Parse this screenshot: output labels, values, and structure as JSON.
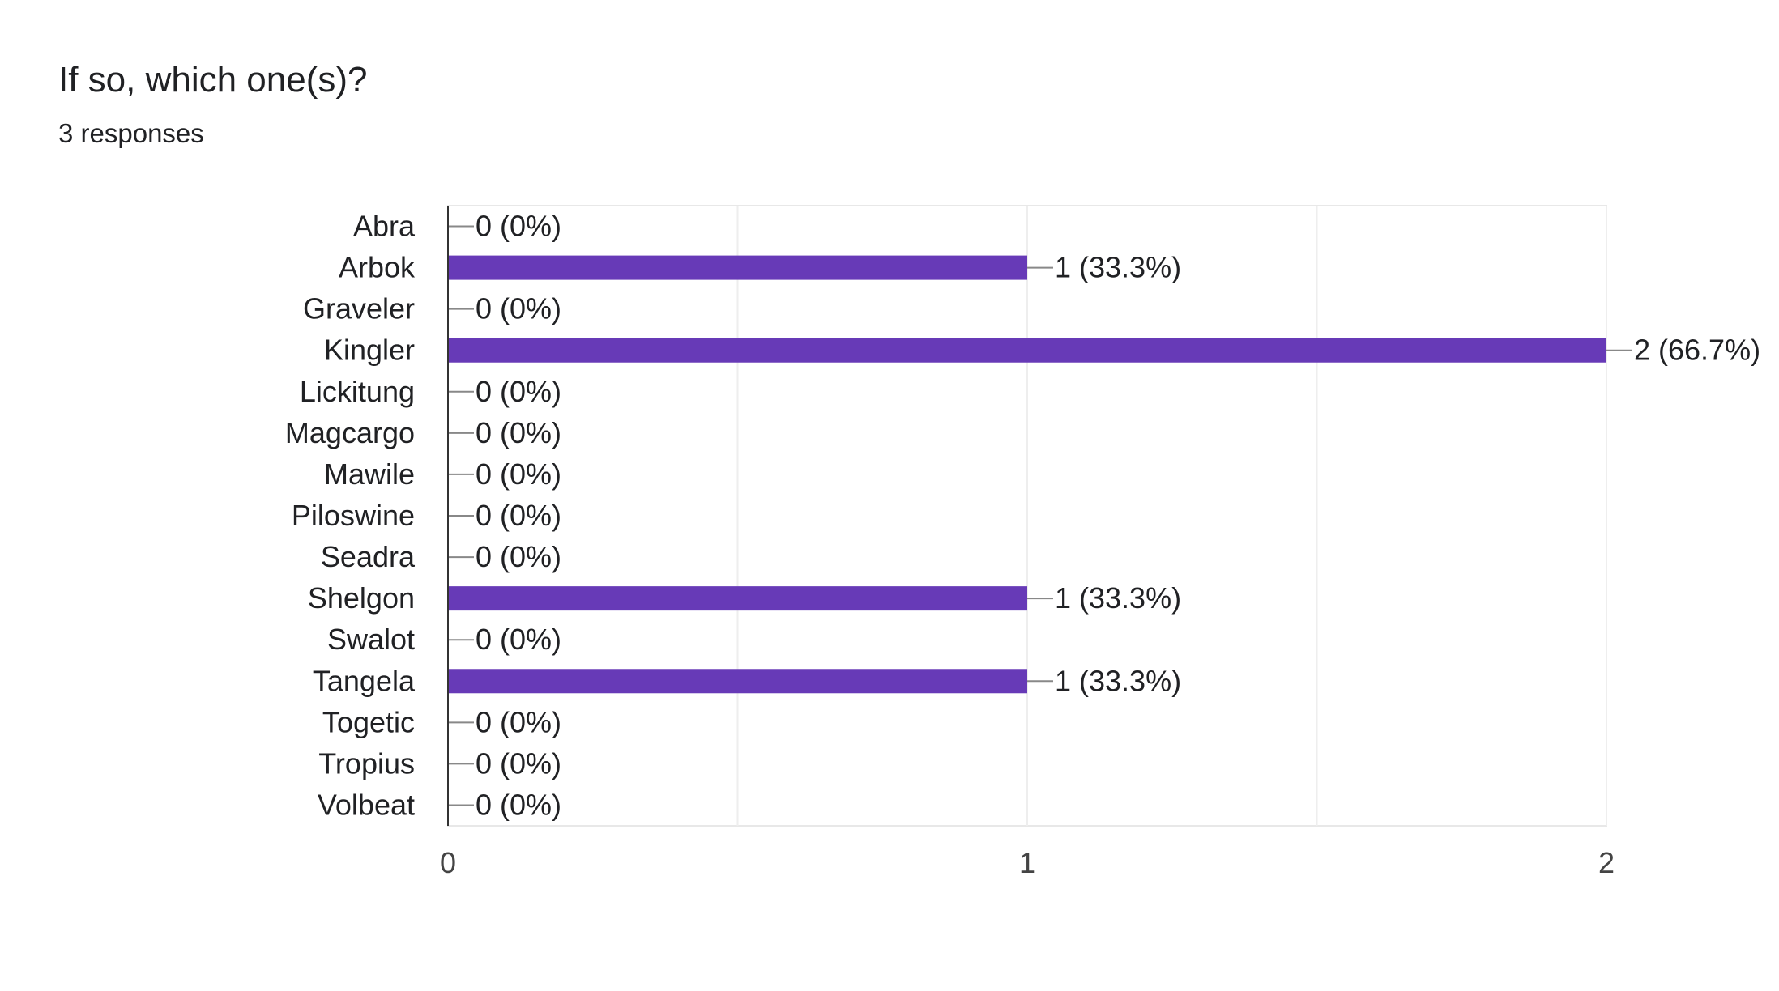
{
  "question": {
    "title": "If so, which one(s)?",
    "responses": "3 responses"
  },
  "chart_data": {
    "type": "bar",
    "orientation": "horizontal",
    "categories": [
      "Abra",
      "Arbok",
      "Graveler",
      "Kingler",
      "Lickitung",
      "Magcargo",
      "Mawile",
      "Piloswine",
      "Seadra",
      "Shelgon",
      "Swalot",
      "Tangela",
      "Togetic",
      "Tropius",
      "Volbeat"
    ],
    "values": [
      0,
      1,
      0,
      2,
      0,
      0,
      0,
      0,
      0,
      1,
      0,
      1,
      0,
      0,
      0
    ],
    "data_labels": [
      "0 (0%)",
      "1 (33.3%)",
      "0 (0%)",
      "2 (66.7%)",
      "0 (0%)",
      "0 (0%)",
      "0 (0%)",
      "0 (0%)",
      "0 (0%)",
      "1 (33.3%)",
      "0 (0%)",
      "1 (33.3%)",
      "0 (0%)",
      "0 (0%)",
      "0 (0%)"
    ],
    "xlim": [
      0,
      2
    ],
    "xticks": [
      "0",
      "1",
      "2"
    ],
    "grid": true,
    "legend": "none",
    "bar_color": "#673ab7"
  }
}
